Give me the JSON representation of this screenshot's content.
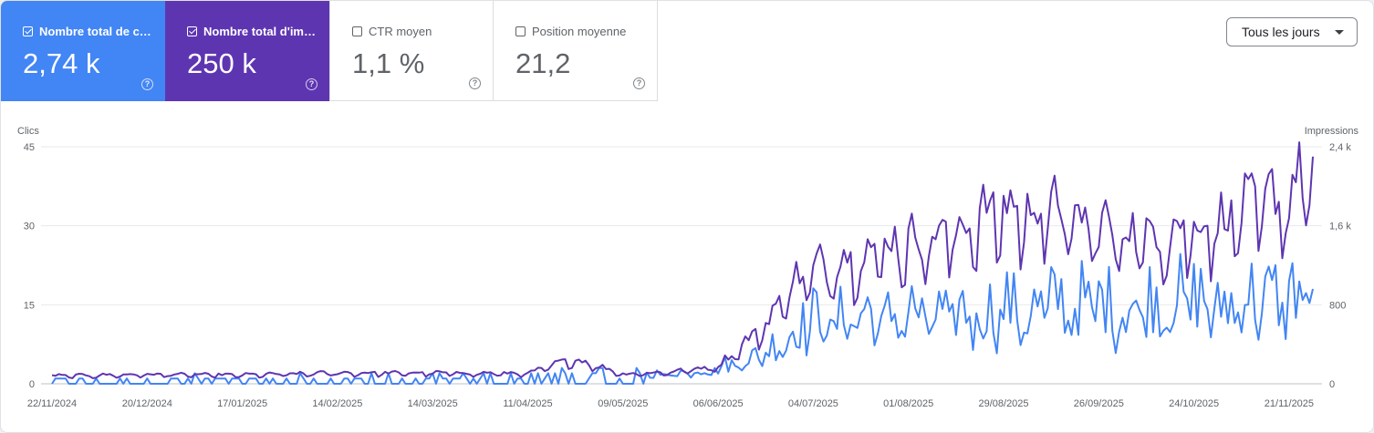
{
  "metrics": [
    {
      "label": "Nombre total de c…",
      "value": "2,74 k",
      "selected": true,
      "color": "#4285f4"
    },
    {
      "label": "Nombre total d'im…",
      "value": "250 k",
      "selected": true,
      "color": "#5e35b1"
    },
    {
      "label": "CTR moyen",
      "value": "1,1 %",
      "selected": false
    },
    {
      "label": "Position moyenne",
      "value": "21,2",
      "selected": false
    }
  ],
  "period_selector": {
    "label": "Tous les jours"
  },
  "chart_data": {
    "type": "line",
    "left_axis": {
      "title": "Clics",
      "ticks": [
        "0",
        "15",
        "30",
        "45"
      ],
      "range": [
        0,
        45
      ]
    },
    "right_axis": {
      "title": "Impressions",
      "ticks": [
        "0",
        "800",
        "1,6 k",
        "2,4 k"
      ],
      "range": [
        0,
        2400
      ]
    },
    "x_ticks": [
      "22/11/2024",
      "20/12/2024",
      "17/01/2025",
      "14/02/2025",
      "14/03/2025",
      "11/04/2025",
      "09/05/2025",
      "06/06/2025",
      "04/07/2025",
      "01/08/2025",
      "29/08/2025",
      "26/09/2025",
      "24/10/2025",
      "21/11/2025"
    ],
    "x_start": "2024-11-22",
    "series": [
      {
        "name": "Clics",
        "axis": "left",
        "color": "#4285f4",
        "anchors": [
          [
            0,
            0.5
          ],
          [
            28,
            0.8
          ],
          [
            56,
            0.6
          ],
          [
            84,
            0.8
          ],
          [
            112,
            0.8
          ],
          [
            140,
            1
          ],
          [
            168,
            1.5
          ],
          [
            182,
            2
          ],
          [
            196,
            3
          ],
          [
            210,
            6
          ],
          [
            224,
            13
          ],
          [
            231,
            12
          ],
          [
            238,
            14
          ],
          [
            245,
            12
          ],
          [
            252,
            14
          ],
          [
            259,
            12
          ],
          [
            266,
            14
          ],
          [
            273,
            13
          ],
          [
            280,
            15
          ],
          [
            287,
            13
          ],
          [
            294,
            16
          ],
          [
            301,
            15
          ],
          [
            308,
            16
          ],
          [
            315,
            14
          ],
          [
            322,
            16
          ],
          [
            329,
            16
          ],
          [
            336,
            17
          ],
          [
            343,
            14
          ],
          [
            350,
            17
          ],
          [
            357,
            16
          ],
          [
            364,
            17
          ],
          [
            371,
            18
          ]
        ],
        "noise": 0.45
      },
      {
        "name": "Impressions",
        "axis": "right",
        "color": "#5e35b1",
        "anchors": [
          [
            0,
            80
          ],
          [
            28,
            95
          ],
          [
            56,
            90
          ],
          [
            84,
            110
          ],
          [
            112,
            110
          ],
          [
            140,
            105
          ],
          [
            152,
            240
          ],
          [
            156,
            230
          ],
          [
            168,
            100
          ],
          [
            182,
            120
          ],
          [
            196,
            180
          ],
          [
            210,
            600
          ],
          [
            217,
            1000
          ],
          [
            224,
            1150
          ],
          [
            231,
            1250
          ],
          [
            238,
            1300
          ],
          [
            245,
            1400
          ],
          [
            252,
            1450
          ],
          [
            259,
            1500
          ],
          [
            266,
            1550
          ],
          [
            273,
            1700
          ],
          [
            280,
            1780
          ],
          [
            287,
            1750
          ],
          [
            294,
            1800
          ],
          [
            301,
            1650
          ],
          [
            308,
            1600
          ],
          [
            315,
            1550
          ],
          [
            322,
            1500
          ],
          [
            329,
            1550
          ],
          [
            336,
            1600
          ],
          [
            343,
            1650
          ],
          [
            350,
            1750
          ],
          [
            357,
            1850
          ],
          [
            364,
            1900
          ],
          [
            371,
            2300
          ]
        ],
        "noise": 0.14
      }
    ]
  }
}
